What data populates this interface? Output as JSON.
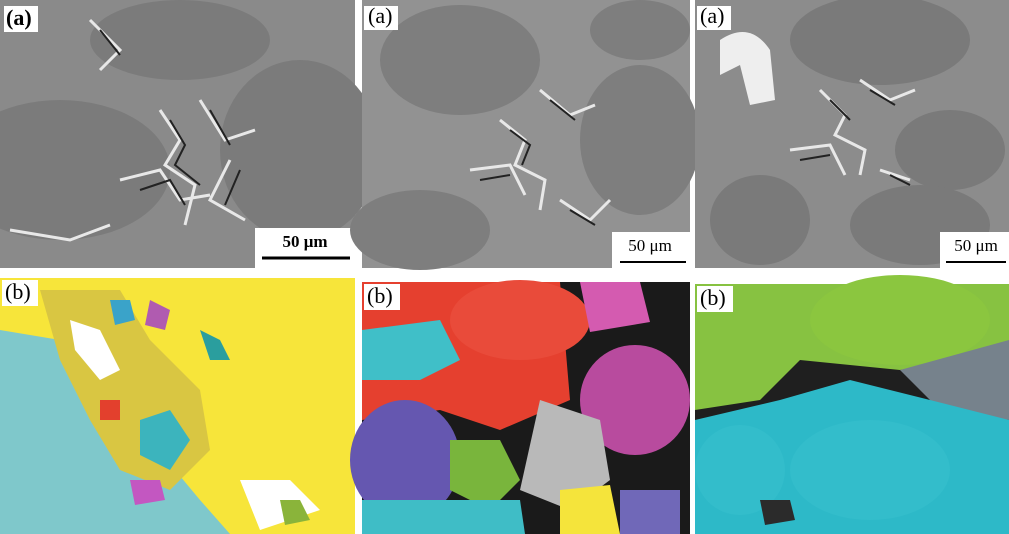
{
  "top_row": [
    {
      "label": "(a)",
      "scale_bar": "50 μm"
    },
    {
      "label": "(a)",
      "scale_bar": "50 μm"
    },
    {
      "label": "(a)",
      "scale_bar": "50 μm"
    }
  ],
  "bottom_row": [
    {
      "label": "(b)"
    },
    {
      "label": "(b)"
    },
    {
      "label": "(b)"
    }
  ]
}
